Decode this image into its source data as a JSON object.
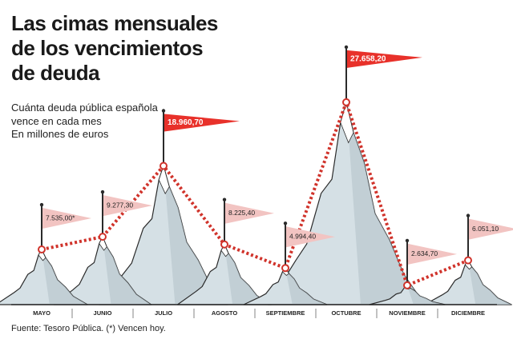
{
  "chart_data": {
    "type": "line",
    "title": "Las cimas mensuales de los vencimientos de deuda",
    "subtitle": "Cuánta deuda pública española vence en cada mes",
    "unit": "En millones de euros",
    "source": "Fuente: Tesoro Pública. (*) Vencen hoy.",
    "categories": [
      "MAYO",
      "JUNIO",
      "JULIO",
      "AGOSTO",
      "SEPTIEMBRE",
      "OCTUBRE",
      "NOVIEMBRE",
      "DICIEMBRE"
    ],
    "values": [
      7535.0,
      9277.3,
      18960.7,
      8225.4,
      4994.4,
      27658.2,
      2634.7,
      6051.1
    ],
    "value_labels": [
      "7.535,00*",
      "9.277,30",
      "18.960,70",
      "8.225,40",
      "4.994,40",
      "27.658,20",
      "2.634,70",
      "6.051,10"
    ],
    "color": "#d0332b",
    "flag_colors": [
      "#f2c4c2",
      "#f2c4c2",
      "#e8312a",
      "#f2c4c2",
      "#f2c4c2",
      "#e8312a",
      "#f2c4c2",
      "#f2c4c2"
    ],
    "mountain_color": "#d5e0e5"
  }
}
